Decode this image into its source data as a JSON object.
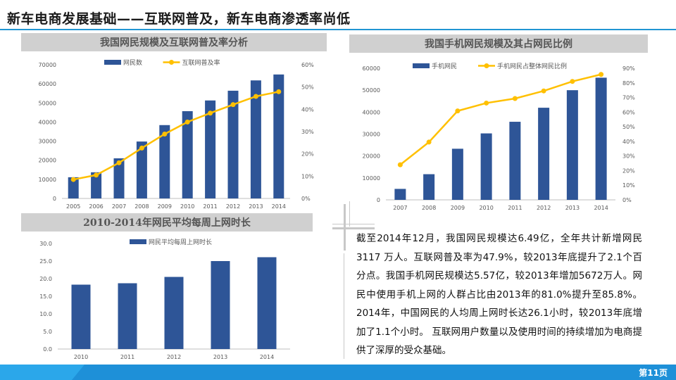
{
  "slide": {
    "title": "新车电商发展基础——互联网普及，新车电商渗透率尚低",
    "page_label": "第11页",
    "paragraph": "截至2014年12月，我国网民规模达6.49亿，全年共计新增网民3117 万人。互联网普及率为47.9%，较2013年底提升了2.1个百分点。我国手机网民规模达5.57亿，较2013年增加5672万人。网民中使用手机上网的人群占比由2013年的81.0%提升至85.8%。2014年，中国网民的人均周上网时长达26.1小时，较2013年底增加了1.1个小时。 互联网用户数量以及使用时间的持续增加为电商提供了深厚的受众基础。",
    "colors": {
      "bar": "#2e5597",
      "line": "#ffc000",
      "accent": "#1e90d8",
      "header_bg": "#d0d0d0"
    }
  },
  "chart_data": [
    {
      "type": "bar",
      "title": "我国网民规模及互联网普及率分析",
      "categories": [
        "2005",
        "2006",
        "2007",
        "2008",
        "2009",
        "2010",
        "2011",
        "2012",
        "2013",
        "2014"
      ],
      "y_ticks": [
        "0",
        "10000",
        "20000",
        "30000",
        "40000",
        "50000",
        "60000",
        "70000"
      ],
      "y2_ticks": [
        "0%",
        "10%",
        "20%",
        "30%",
        "40%",
        "50%",
        "60%"
      ],
      "ylim": [
        0,
        70000
      ],
      "y2lim": [
        0,
        60
      ],
      "series": [
        {
          "name": "网民数",
          "type": "bar",
          "axis": "left",
          "values": [
            11100,
            13700,
            21000,
            29800,
            38400,
            45700,
            51300,
            56400,
            61800,
            64900
          ]
        },
        {
          "name": "互联网普及率",
          "type": "line",
          "axis": "right",
          "values": [
            8.5,
            10.5,
            16.0,
            22.6,
            28.9,
            34.3,
            38.3,
            42.1,
            45.8,
            47.9
          ]
        }
      ]
    },
    {
      "type": "bar",
      "title": "我国手机网民规模及其占网民比例",
      "categories": [
        "2007",
        "2008",
        "2009",
        "2010",
        "2011",
        "2012",
        "2013",
        "2014"
      ],
      "y_ticks": [
        "0",
        "10000",
        "20000",
        "30000",
        "40000",
        "50000",
        "60000"
      ],
      "y2_ticks": [
        "0%",
        "10%",
        "20%",
        "30%",
        "40%",
        "50%",
        "60%",
        "70%",
        "80%",
        "90%"
      ],
      "ylim": [
        0,
        60000
      ],
      "y2lim": [
        0,
        90
      ],
      "series": [
        {
          "name": "手机网民",
          "type": "bar",
          "axis": "left",
          "values": [
            5000,
            11700,
            23300,
            30300,
            35600,
            42000,
            50000,
            55700
          ]
        },
        {
          "name": "手机网民占整体网民比例",
          "type": "line",
          "axis": "right",
          "values": [
            24.0,
            39.5,
            60.8,
            66.2,
            69.3,
            74.5,
            81.0,
            85.8
          ]
        }
      ]
    },
    {
      "type": "bar",
      "title": "2010-2014年网民平均每周上网时长",
      "categories": [
        "2010",
        "2011",
        "2012",
        "2013",
        "2014"
      ],
      "y_ticks": [
        "0.0",
        "5.0",
        "10.0",
        "15.0",
        "20.0",
        "25.0",
        "30.0"
      ],
      "ylim": [
        0,
        30
      ],
      "series": [
        {
          "name": "网民平均每周上网时长",
          "type": "bar",
          "axis": "left",
          "values": [
            18.3,
            18.7,
            20.5,
            25.0,
            26.1
          ]
        }
      ]
    }
  ]
}
